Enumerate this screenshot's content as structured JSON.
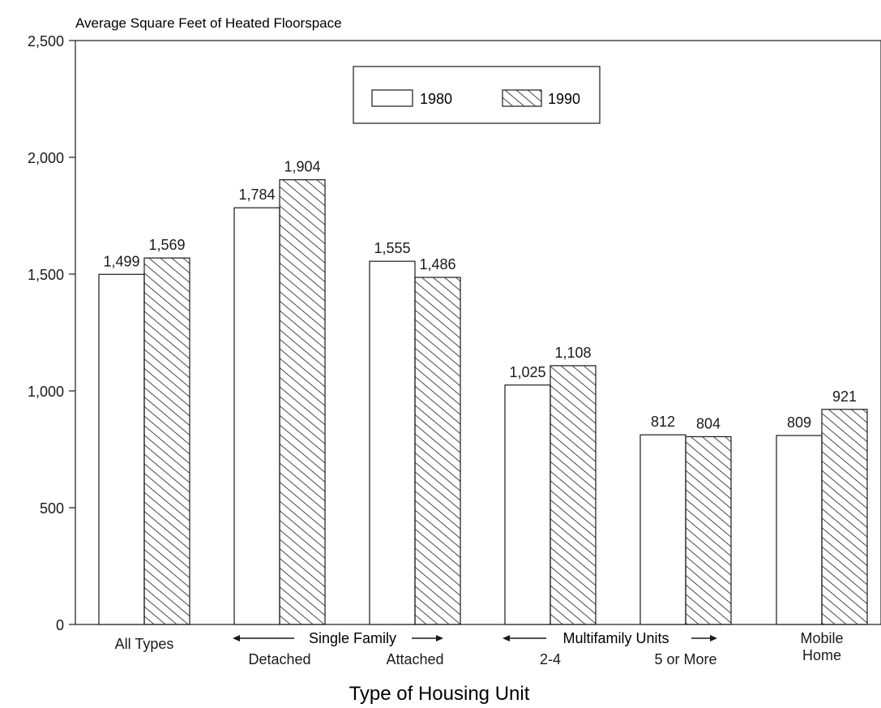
{
  "chart_data": {
    "type": "bar",
    "title": "Average Square Feet of Heated Floorspace",
    "xlabel": "Type of Housing Unit",
    "ylabel": "",
    "ylim": [
      0,
      2500
    ],
    "yticks": [
      0,
      500,
      1000,
      1500,
      2000,
      2500
    ],
    "ytick_labels": [
      "0",
      "500",
      "1,000",
      "1,500",
      "2,000",
      "2,500"
    ],
    "grid": false,
    "legend_position": "top-center",
    "categories": [
      "All Types",
      "Detached",
      "Attached",
      "2-4",
      "5 or More",
      "Mobile Home"
    ],
    "category_label_lines": [
      [
        "All Types"
      ],
      [
        "Detached"
      ],
      [
        "Attached"
      ],
      [
        "2-4"
      ],
      [
        "5 or More"
      ],
      [
        "Mobile",
        "Home"
      ]
    ],
    "group_labels": [
      "Single Family",
      "Multifamily Units"
    ],
    "series": [
      {
        "name": "1980",
        "pattern": "plain",
        "values": [
          1499,
          1784,
          1555,
          1025,
          812,
          809
        ],
        "labels": [
          "1,499",
          "1,784",
          "1,555",
          "1,025",
          "812",
          "809"
        ]
      },
      {
        "name": "1990",
        "pattern": "hatched",
        "values": [
          1569,
          1904,
          1486,
          1108,
          804,
          921
        ],
        "labels": [
          "1,569",
          "1,904",
          "1,486",
          "1,108",
          "804",
          "921"
        ]
      }
    ],
    "colors": {
      "ink": "#1a1a1a",
      "fill": "#ffffff"
    }
  }
}
